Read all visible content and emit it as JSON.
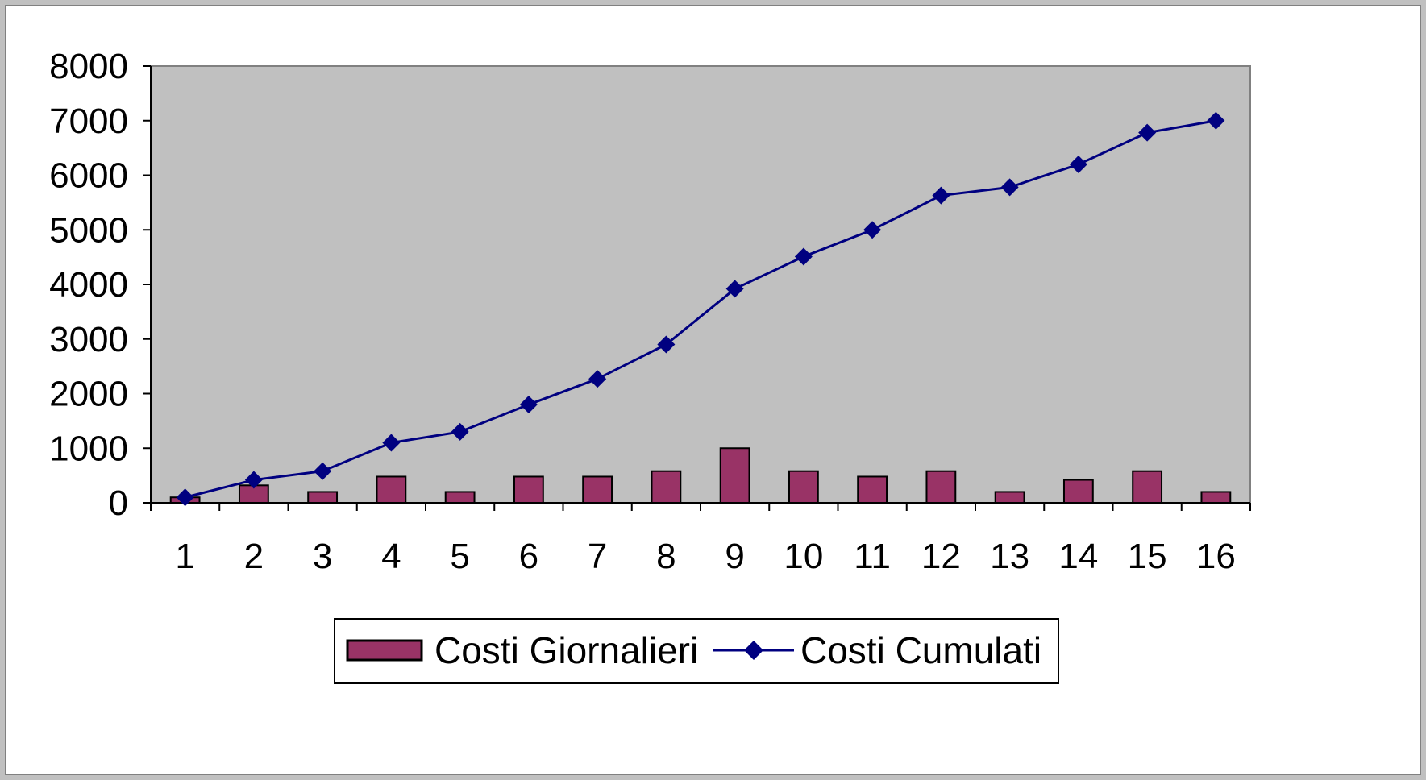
{
  "chart_data": {
    "type": "bar",
    "title": "",
    "xlabel": "",
    "ylabel": "",
    "categories": [
      "1",
      "2",
      "3",
      "4",
      "5",
      "6",
      "7",
      "8",
      "9",
      "10",
      "11",
      "12",
      "13",
      "14",
      "15",
      "16"
    ],
    "ylim": [
      0,
      8000
    ],
    "yticks": [
      0,
      1000,
      2000,
      3000,
      4000,
      5000,
      6000,
      7000,
      8000
    ],
    "grid": false,
    "legend_position": "bottom",
    "series": [
      {
        "name": "Costi Giornalieri",
        "type": "bar",
        "color": "#993366",
        "values": [
          100,
          320,
          200,
          480,
          200,
          480,
          480,
          580,
          1000,
          580,
          480,
          580,
          200,
          420,
          580,
          200
        ]
      },
      {
        "name": "Costi Cumulati",
        "type": "line",
        "color": "#000080",
        "marker": "diamond",
        "values": [
          100,
          420,
          580,
          1100,
          1300,
          1800,
          2270,
          2900,
          3920,
          4510,
          5000,
          5630,
          5780,
          6200,
          6780,
          7000
        ]
      }
    ]
  },
  "colors": {
    "plot_area": "#c0c0c0",
    "background": "#ffffff"
  }
}
